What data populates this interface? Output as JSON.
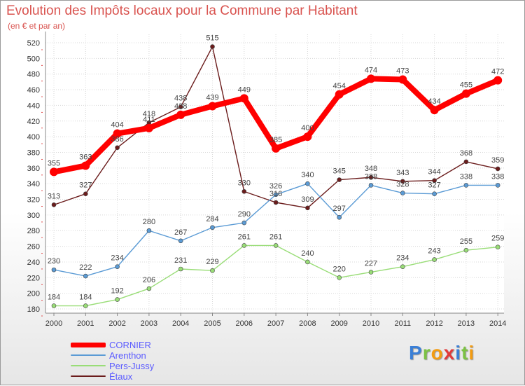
{
  "chart_data": {
    "type": "line",
    "title": "Evolution des Impôts locaux pour la Commune par Habitant",
    "subtitle": "(en € et par an)",
    "xlabel": "",
    "ylabel": "",
    "ylim": [
      180,
      520
    ],
    "yticks": [
      180,
      200,
      220,
      240,
      260,
      280,
      300,
      320,
      340,
      360,
      380,
      400,
      420,
      440,
      460,
      480,
      500,
      520
    ],
    "categories": [
      "2000",
      "2001",
      "2002",
      "2003",
      "2004",
      "2005",
      "2006",
      "2007",
      "2008",
      "2009",
      "2010",
      "2011",
      "2012",
      "2013",
      "2014"
    ],
    "series": [
      {
        "name": "CORNIER",
        "color": "#ff0000",
        "values": [
          355,
          363,
          404,
          411,
          428,
          439,
          449,
          385,
          400,
          454,
          474,
          473,
          434,
          455,
          472
        ]
      },
      {
        "name": "Arenthon",
        "color": "#5b9bd5",
        "values": [
          230,
          222,
          234,
          280,
          267,
          284,
          290,
          326,
          340,
          297,
          338,
          328,
          327,
          338,
          338
        ]
      },
      {
        "name": "Pers-Jussy",
        "color": "#99dd77",
        "values": [
          184,
          184,
          192,
          206,
          231,
          229,
          261,
          261,
          240,
          220,
          227,
          234,
          243,
          255,
          259
        ]
      },
      {
        "name": "Étaux",
        "color": "#6b1c1c",
        "values": [
          313,
          327,
          386,
          418,
          438,
          515,
          330,
          316,
          309,
          345,
          348,
          343,
          344,
          368,
          359
        ]
      }
    ]
  },
  "legend": {
    "items": [
      {
        "label": "CORNIER",
        "color": "#ff0000",
        "text_color": "#5a5aff"
      },
      {
        "label": "Arenthon",
        "color": "#5b9bd5",
        "text_color": "#5a5aff"
      },
      {
        "label": "Pers-Jussy",
        "color": "#99dd77",
        "text_color": "#5a5aff"
      },
      {
        "label": "Étaux",
        "color": "#6b1c1c",
        "text_color": "#5a5aff"
      }
    ]
  },
  "logo": {
    "letters": [
      "P",
      "r",
      "o",
      "x",
      "i",
      "t",
      "i"
    ],
    "colors": [
      "#3b7fd6",
      "#7cc243",
      "#f39c12",
      "#e23a3a",
      "#3b7fd6",
      "#7cc243",
      "#f39c12"
    ]
  }
}
